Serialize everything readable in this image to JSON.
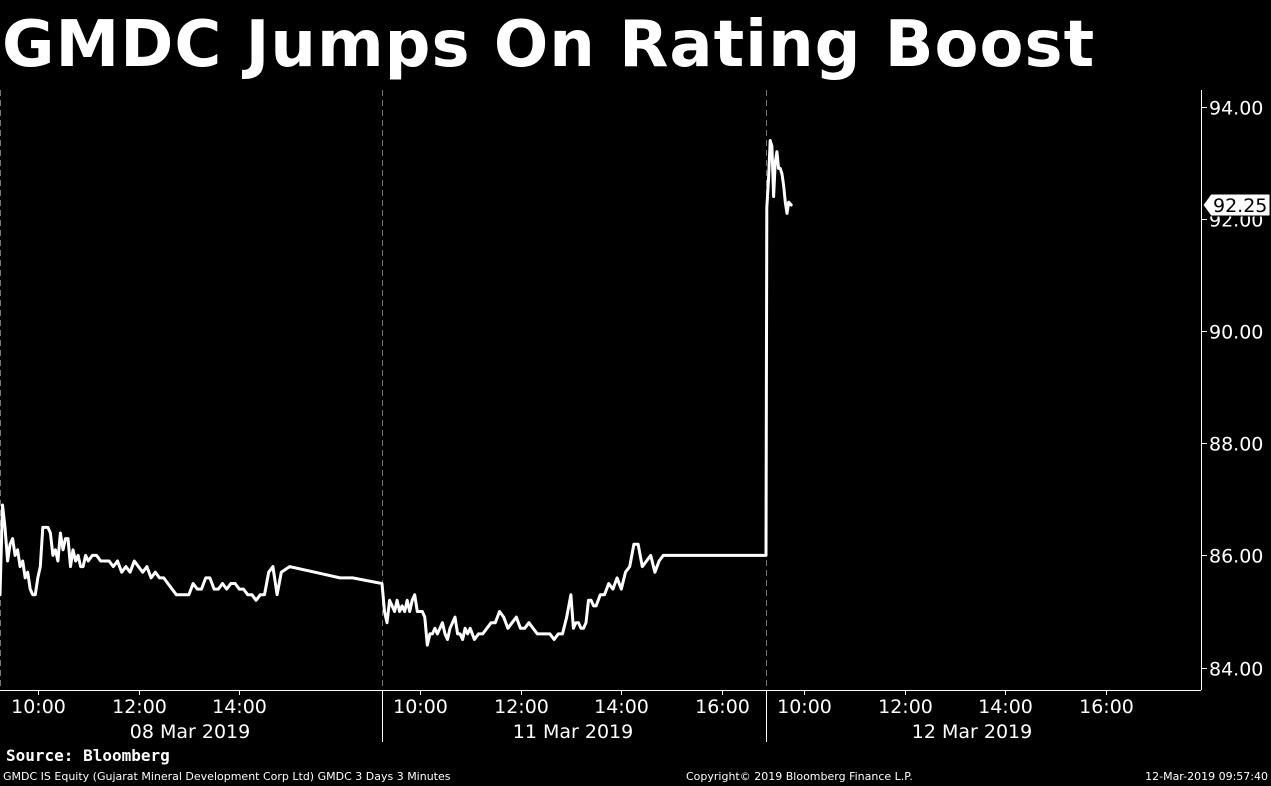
{
  "title": "GMDC Jumps On Rating Boost",
  "source": "Source: Bloomberg",
  "footer": {
    "left": "GMDC IS Equity (Gujarat Mineral Development Corp Ltd) GMDC 3 Days 3 Minutes",
    "center": "Copyright© 2019 Bloomberg Finance L.P.",
    "right": "12-Mar-2019 09:57:40"
  },
  "colors": {
    "background": "#000000",
    "line": "#ffffff",
    "text": "#ffffff",
    "separator": "#777777"
  },
  "chart_data": {
    "type": "line",
    "title": "GMDC Jumps On Rating Boost",
    "xlabel": "",
    "ylabel": "",
    "ylim": [
      83.6,
      94.3
    ],
    "yticks": [
      84.0,
      86.0,
      88.0,
      90.0,
      92.0,
      94.0
    ],
    "ytick_labels": [
      "84.00",
      "86.00",
      "88.00",
      "90.00",
      "92.00",
      "94.00"
    ],
    "y_axis_side": "right",
    "grid": false,
    "last_price": 92.25,
    "last_price_label": "92.25",
    "days": [
      {
        "date": "08 Mar 2019",
        "time_range": [
          "09:15",
          "16:50"
        ],
        "tick_labels": [
          "10:00",
          "12:00",
          "14:00"
        ]
      },
      {
        "date": "11 Mar 2019",
        "time_range": [
          "09:15",
          "16:00"
        ],
        "tick_labels": [
          "10:00",
          "12:00",
          "14:00",
          "16:00"
        ]
      },
      {
        "date": "12 Mar 2019",
        "time_range": [
          "09:15",
          "16:50"
        ],
        "tick_labels": [
          "10:00",
          "12:00",
          "14:00",
          "16:00"
        ]
      }
    ],
    "series": [
      {
        "values": [
          [
            [
              "09:15",
              85.3
            ],
            [
              "09:18",
              86.9
            ],
            [
              "09:21",
              86.5
            ],
            [
              "09:24",
              85.9
            ],
            [
              "09:27",
              86.2
            ],
            [
              "09:30",
              86.3
            ],
            [
              "09:33",
              86.0
            ],
            [
              "09:36",
              86.1
            ],
            [
              "09:39",
              85.8
            ],
            [
              "09:42",
              85.9
            ],
            [
              "09:45",
              85.6
            ],
            [
              "09:48",
              85.7
            ],
            [
              "09:51",
              85.4
            ],
            [
              "09:54",
              85.3
            ],
            [
              "09:57",
              85.3
            ],
            [
              "10:00",
              85.6
            ],
            [
              "10:03",
              85.8
            ],
            [
              "10:06",
              86.5
            ],
            [
              "10:09",
              86.5
            ],
            [
              "10:12",
              86.5
            ],
            [
              "10:15",
              86.4
            ],
            [
              "10:18",
              86.0
            ],
            [
              "10:21",
              86.1
            ],
            [
              "10:24",
              85.9
            ],
            [
              "10:27",
              86.4
            ],
            [
              "10:30",
              86.1
            ],
            [
              "10:33",
              86.3
            ],
            [
              "10:36",
              86.3
            ],
            [
              "10:39",
              85.8
            ],
            [
              "10:42",
              86.1
            ],
            [
              "10:45",
              85.9
            ],
            [
              "10:48",
              86.0
            ],
            [
              "10:51",
              85.8
            ],
            [
              "10:54",
              85.8
            ],
            [
              "10:57",
              86.0
            ],
            [
              "11:00",
              85.9
            ],
            [
              "11:05",
              86.0
            ],
            [
              "11:10",
              86.0
            ],
            [
              "11:15",
              85.9
            ],
            [
              "11:20",
              85.9
            ],
            [
              "11:25",
              85.9
            ],
            [
              "11:30",
              85.8
            ],
            [
              "11:35",
              85.9
            ],
            [
              "11:40",
              85.7
            ],
            [
              "11:45",
              85.8
            ],
            [
              "11:50",
              85.7
            ],
            [
              "11:55",
              85.9
            ],
            [
              "12:00",
              85.8
            ],
            [
              "12:05",
              85.7
            ],
            [
              "12:10",
              85.8
            ],
            [
              "12:15",
              85.6
            ],
            [
              "12:20",
              85.7
            ],
            [
              "12:25",
              85.6
            ],
            [
              "12:30",
              85.6
            ],
            [
              "12:35",
              85.5
            ],
            [
              "12:40",
              85.4
            ],
            [
              "12:45",
              85.3
            ],
            [
              "12:50",
              85.3
            ],
            [
              "12:55",
              85.3
            ],
            [
              "13:00",
              85.3
            ],
            [
              "13:05",
              85.5
            ],
            [
              "13:10",
              85.4
            ],
            [
              "13:15",
              85.4
            ],
            [
              "13:20",
              85.6
            ],
            [
              "13:25",
              85.6
            ],
            [
              "13:30",
              85.4
            ],
            [
              "13:35",
              85.4
            ],
            [
              "13:40",
              85.5
            ],
            [
              "13:45",
              85.4
            ],
            [
              "13:50",
              85.5
            ],
            [
              "13:55",
              85.5
            ],
            [
              "14:00",
              85.4
            ],
            [
              "14:05",
              85.4
            ],
            [
              "14:10",
              85.3
            ],
            [
              "14:15",
              85.3
            ],
            [
              "14:20",
              85.2
            ],
            [
              "14:25",
              85.3
            ],
            [
              "14:30",
              85.3
            ],
            [
              "14:35",
              85.7
            ],
            [
              "14:40",
              85.8
            ],
            [
              "14:45",
              85.3
            ],
            [
              "14:50",
              85.7
            ],
            [
              "15:00",
              85.8
            ],
            [
              "15:30",
              85.7
            ],
            [
              "16:00",
              85.6
            ],
            [
              "16:15",
              85.6
            ]
          ],
          [
            [
              "09:15",
              85.5
            ],
            [
              "09:18",
              85.0
            ],
            [
              "09:21",
              84.8
            ],
            [
              "09:24",
              85.2
            ],
            [
              "09:27",
              85.1
            ],
            [
              "09:30",
              85.0
            ],
            [
              "09:33",
              85.2
            ],
            [
              "09:36",
              85.0
            ],
            [
              "09:39",
              85.1
            ],
            [
              "09:42",
              85.0
            ],
            [
              "09:45",
              85.2
            ],
            [
              "09:48",
              85.0
            ],
            [
              "09:51",
              85.2
            ],
            [
              "09:54",
              85.3
            ],
            [
              "09:57",
              85.0
            ],
            [
              "10:00",
              85.0
            ],
            [
              "10:03",
              85.0
            ],
            [
              "10:06",
              84.9
            ],
            [
              "10:09",
              84.4
            ],
            [
              "10:12",
              84.6
            ],
            [
              "10:15",
              84.6
            ],
            [
              "10:18",
              84.7
            ],
            [
              "10:21",
              84.6
            ],
            [
              "10:24",
              84.7
            ],
            [
              "10:27",
              84.8
            ],
            [
              "10:30",
              84.6
            ],
            [
              "10:33",
              84.5
            ],
            [
              "10:36",
              84.7
            ],
            [
              "10:39",
              84.8
            ],
            [
              "10:42",
              84.9
            ],
            [
              "10:45",
              84.6
            ],
            [
              "10:48",
              84.6
            ],
            [
              "10:51",
              84.5
            ],
            [
              "10:54",
              84.7
            ],
            [
              "10:57",
              84.6
            ],
            [
              "11:00",
              84.7
            ],
            [
              "11:05",
              84.5
            ],
            [
              "11:10",
              84.6
            ],
            [
              "11:15",
              84.6
            ],
            [
              "11:20",
              84.7
            ],
            [
              "11:25",
              84.8
            ],
            [
              "11:30",
              84.8
            ],
            [
              "11:35",
              85.0
            ],
            [
              "11:40",
              84.9
            ],
            [
              "11:45",
              84.7
            ],
            [
              "11:50",
              84.8
            ],
            [
              "11:55",
              84.9
            ],
            [
              "12:00",
              84.7
            ],
            [
              "12:05",
              84.7
            ],
            [
              "12:10",
              84.8
            ],
            [
              "12:15",
              84.7
            ],
            [
              "12:20",
              84.6
            ],
            [
              "12:25",
              84.6
            ],
            [
              "12:30",
              84.6
            ],
            [
              "12:35",
              84.6
            ],
            [
              "12:40",
              84.5
            ],
            [
              "12:45",
              84.6
            ],
            [
              "12:50",
              84.6
            ],
            [
              "12:55",
              84.9
            ],
            [
              "13:00",
              85.3
            ],
            [
              "13:03",
              84.7
            ],
            [
              "13:06",
              84.8
            ],
            [
              "13:09",
              84.8
            ],
            [
              "13:12",
              84.7
            ],
            [
              "13:15",
              84.7
            ],
            [
              "13:18",
              84.8
            ],
            [
              "13:21",
              85.2
            ],
            [
              "13:24",
              85.2
            ],
            [
              "13:27",
              85.1
            ],
            [
              "13:30",
              85.1
            ],
            [
              "13:35",
              85.3
            ],
            [
              "13:40",
              85.3
            ],
            [
              "13:45",
              85.5
            ],
            [
              "13:50",
              85.4
            ],
            [
              "13:55",
              85.6
            ],
            [
              "14:00",
              85.4
            ],
            [
              "14:05",
              85.7
            ],
            [
              "14:10",
              85.8
            ],
            [
              "14:15",
              86.2
            ],
            [
              "14:20",
              86.2
            ],
            [
              "14:25",
              85.8
            ],
            [
              "14:30",
              85.9
            ],
            [
              "14:35",
              86.0
            ],
            [
              "14:40",
              85.7
            ],
            [
              "14:45",
              85.9
            ],
            [
              "14:50",
              86.0
            ],
            [
              "15:00",
              86.0
            ],
            [
              "15:30",
              86.0
            ],
            [
              "16:00",
              86.0
            ]
          ],
          [
            [
              "09:15",
              86.0
            ],
            [
              "09:16",
              92.2
            ],
            [
              "09:18",
              92.7
            ],
            [
              "09:20",
              93.4
            ],
            [
              "09:22",
              93.3
            ],
            [
              "09:24",
              92.4
            ],
            [
              "09:26",
              93.0
            ],
            [
              "09:28",
              93.2
            ],
            [
              "09:30",
              92.9
            ],
            [
              "09:32",
              92.9
            ],
            [
              "09:34",
              92.8
            ],
            [
              "09:36",
              92.6
            ],
            [
              "09:38",
              92.3
            ],
            [
              "09:40",
              92.1
            ],
            [
              "09:42",
              92.3
            ],
            [
              "09:45",
              92.25
            ]
          ]
        ]
      }
    ]
  }
}
